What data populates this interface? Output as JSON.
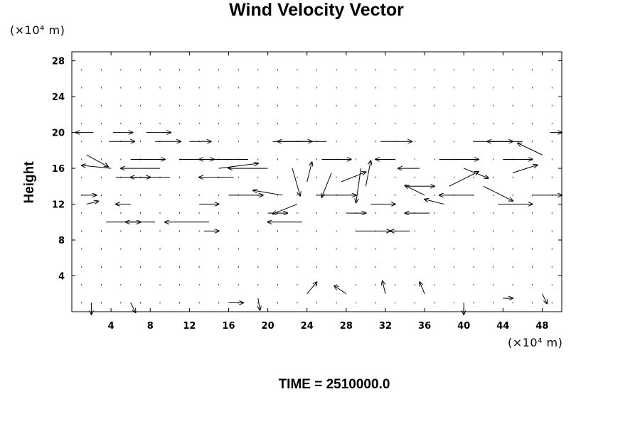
{
  "chart_data": {
    "type": "quiver",
    "title": "Wind Velocity Vector",
    "ylabel": "Height",
    "xlabel": "",
    "x_unit_label": "(×10⁴ m)",
    "y_unit_label": "(×10⁴ m)",
    "xlim": [
      0,
      50
    ],
    "ylim": [
      0,
      29
    ],
    "x_ticks": [
      4,
      8,
      12,
      16,
      20,
      24,
      28,
      32,
      36,
      40,
      44,
      48
    ],
    "y_ticks": [
      4,
      8,
      12,
      16,
      20,
      24,
      28
    ],
    "grid": false,
    "time_label": "TIME = 2510000.0",
    "vectors": [
      {
        "x": 2.2,
        "y": 20.0,
        "u": -1.8,
        "v": 0.0
      },
      {
        "x": 4.2,
        "y": 20.0,
        "u": 2.0,
        "v": 0.0
      },
      {
        "x": 7.6,
        "y": 20.0,
        "u": 2.5,
        "v": 0.0
      },
      {
        "x": 48.8,
        "y": 20.0,
        "u": 1.2,
        "v": 0.0
      },
      {
        "x": 3.8,
        "y": 19.0,
        "u": 2.6,
        "v": 0.0
      },
      {
        "x": 8.5,
        "y": 19.0,
        "u": 2.6,
        "v": 0.0
      },
      {
        "x": 12.0,
        "y": 19.0,
        "u": 2.2,
        "v": 0.0
      },
      {
        "x": 20.5,
        "y": 19.0,
        "u": 4.0,
        "v": 0.0
      },
      {
        "x": 26.0,
        "y": 19.0,
        "u": -5.0,
        "v": 0.0
      },
      {
        "x": 31.5,
        "y": 19.0,
        "u": 3.2,
        "v": 0.0
      },
      {
        "x": 41.0,
        "y": 19.0,
        "u": 4.0,
        "v": 0.0
      },
      {
        "x": 46.0,
        "y": 19.0,
        "u": -3.6,
        "v": 0.0
      },
      {
        "x": 1.5,
        "y": 17.5,
        "u": 2.2,
        "v": -1.2
      },
      {
        "x": 6.0,
        "y": 17.0,
        "u": 3.5,
        "v": 0.0
      },
      {
        "x": 11.0,
        "y": 17.0,
        "u": 3.5,
        "v": 0.0
      },
      {
        "x": 18.0,
        "y": 17.0,
        "u": -5.0,
        "v": 0.0
      },
      {
        "x": 25.5,
        "y": 17.0,
        "u": 3.0,
        "v": 0.0
      },
      {
        "x": 33.0,
        "y": 17.0,
        "u": -2.0,
        "v": 0.0
      },
      {
        "x": 37.5,
        "y": 17.0,
        "u": 4.0,
        "v": 0.0
      },
      {
        "x": 44.0,
        "y": 17.0,
        "u": 3.0,
        "v": 0.0
      },
      {
        "x": 48.0,
        "y": 17.5,
        "u": -2.5,
        "v": 1.2
      },
      {
        "x": 4.0,
        "y": 16.0,
        "u": -3.0,
        "v": 0.3
      },
      {
        "x": 9.0,
        "y": 16.0,
        "u": -4.0,
        "v": 0.0
      },
      {
        "x": 15.0,
        "y": 16.0,
        "u": 4.0,
        "v": 0.5
      },
      {
        "x": 20.0,
        "y": 16.0,
        "u": -4.0,
        "v": 0.0
      },
      {
        "x": 22.5,
        "y": 16.0,
        "u": 0.8,
        "v": -2.8
      },
      {
        "x": 26.5,
        "y": 15.5,
        "u": -1.0,
        "v": -2.5
      },
      {
        "x": 29.5,
        "y": 16.0,
        "u": -0.5,
        "v": -3.5
      },
      {
        "x": 30.0,
        "y": 14.0,
        "u": 0.5,
        "v": 2.6
      },
      {
        "x": 35.5,
        "y": 16.0,
        "u": -2.2,
        "v": 0.0
      },
      {
        "x": 40.0,
        "y": 16.0,
        "u": 2.5,
        "v": -1.0
      },
      {
        "x": 45.0,
        "y": 15.5,
        "u": 2.5,
        "v": 0.8
      },
      {
        "x": 4.5,
        "y": 15.0,
        "u": 3.5,
        "v": 0.0
      },
      {
        "x": 10.0,
        "y": 15.0,
        "u": -4.0,
        "v": 0.0
      },
      {
        "x": 16.5,
        "y": 15.0,
        "u": -3.5,
        "v": 0.0
      },
      {
        "x": 24.0,
        "y": 14.5,
        "u": 0.5,
        "v": 2.0
      },
      {
        "x": 27.5,
        "y": 14.5,
        "u": 2.5,
        "v": 1.0
      },
      {
        "x": 34.0,
        "y": 14.0,
        "u": 3.0,
        "v": 0.0
      },
      {
        "x": 38.5,
        "y": 14.0,
        "u": 3.0,
        "v": 1.5
      },
      {
        "x": 42.0,
        "y": 14.0,
        "u": 3.0,
        "v": -1.5
      },
      {
        "x": 1.0,
        "y": 13.0,
        "u": 1.5,
        "v": 0.0
      },
      {
        "x": 16.0,
        "y": 13.0,
        "u": 3.5,
        "v": 0.0
      },
      {
        "x": 21.5,
        "y": 13.0,
        "u": -3.0,
        "v": 0.5
      },
      {
        "x": 25.0,
        "y": 13.0,
        "u": 4.0,
        "v": 0.0
      },
      {
        "x": 36.0,
        "y": 13.0,
        "u": -2.0,
        "v": 1.0
      },
      {
        "x": 41.0,
        "y": 13.0,
        "u": -3.5,
        "v": 0.0
      },
      {
        "x": 47.0,
        "y": 13.0,
        "u": 3.0,
        "v": 0.0
      },
      {
        "x": 1.5,
        "y": 12.0,
        "u": 1.2,
        "v": 0.3
      },
      {
        "x": 6.0,
        "y": 12.0,
        "u": -1.5,
        "v": 0.0
      },
      {
        "x": 13.0,
        "y": 12.0,
        "u": 2.0,
        "v": 0.0
      },
      {
        "x": 23.0,
        "y": 12.0,
        "u": -2.5,
        "v": -1.0
      },
      {
        "x": 30.5,
        "y": 12.0,
        "u": 2.5,
        "v": 0.0
      },
      {
        "x": 38.0,
        "y": 12.0,
        "u": -2.0,
        "v": 0.5
      },
      {
        "x": 43.5,
        "y": 12.0,
        "u": 3.5,
        "v": 0.0
      },
      {
        "x": 20.0,
        "y": 11.0,
        "u": 2.0,
        "v": 0.0
      },
      {
        "x": 28.0,
        "y": 11.0,
        "u": 2.0,
        "v": 0.0
      },
      {
        "x": 36.5,
        "y": 11.0,
        "u": -2.5,
        "v": 0.0
      },
      {
        "x": 3.5,
        "y": 10.0,
        "u": 3.5,
        "v": 0.0
      },
      {
        "x": 8.5,
        "y": 10.0,
        "u": -3.0,
        "v": 0.0
      },
      {
        "x": 14.0,
        "y": 10.0,
        "u": -4.5,
        "v": 0.0
      },
      {
        "x": 23.5,
        "y": 10.0,
        "u": -3.5,
        "v": 0.0
      },
      {
        "x": 29.0,
        "y": 9.0,
        "u": 3.5,
        "v": 0.0
      },
      {
        "x": 13.5,
        "y": 9.0,
        "u": 1.5,
        "v": 0.0
      },
      {
        "x": 34.5,
        "y": 9.0,
        "u": -2.0,
        "v": 0.0
      },
      {
        "x": 2.0,
        "y": 1.0,
        "u": 0.0,
        "v": -1.2
      },
      {
        "x": 6.0,
        "y": 1.0,
        "u": 0.5,
        "v": -1.0
      },
      {
        "x": 16.0,
        "y": 1.0,
        "u": 1.5,
        "v": 0.0
      },
      {
        "x": 19.0,
        "y": 1.5,
        "u": 0.2,
        "v": -1.2
      },
      {
        "x": 24.0,
        "y": 2.0,
        "u": 1.0,
        "v": 1.2
      },
      {
        "x": 28.0,
        "y": 2.0,
        "u": -1.2,
        "v": 0.8
      },
      {
        "x": 32.0,
        "y": 2.0,
        "u": -0.3,
        "v": 1.3
      },
      {
        "x": 36.0,
        "y": 2.0,
        "u": -0.5,
        "v": 1.2
      },
      {
        "x": 40.0,
        "y": 1.0,
        "u": 0.0,
        "v": -1.2
      },
      {
        "x": 44.0,
        "y": 1.5,
        "u": 1.0,
        "v": 0.0
      },
      {
        "x": 48.0,
        "y": 2.0,
        "u": 0.5,
        "v": -1.0
      }
    ]
  }
}
